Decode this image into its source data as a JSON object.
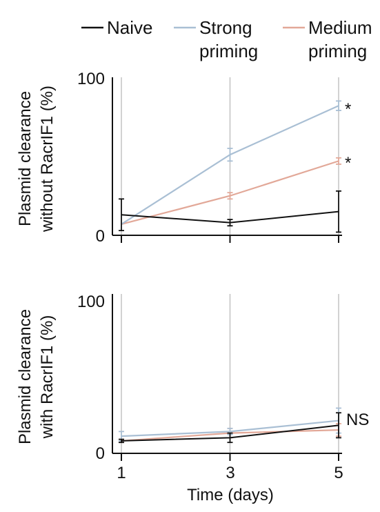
{
  "colors": {
    "naive": "#111111",
    "strong": "#a9bfd4",
    "medium": "#e2a898",
    "grid": "#b5b5b5",
    "axis": "#111111"
  },
  "legend": [
    {
      "label": "Naive",
      "label2": "",
      "color": "#111111"
    },
    {
      "label": "Strong",
      "label2": "priming",
      "color": "#a9bfd4"
    },
    {
      "label": "Medium",
      "label2": "priming",
      "color": "#e2a898"
    }
  ],
  "chart_data": [
    {
      "type": "line",
      "ylabel_line1": "Plasmid clearance",
      "ylabel_line2": "without RacrIF1 (%)",
      "ylim": [
        0,
        100
      ],
      "yticks": [
        "0",
        "100"
      ],
      "x": [
        1,
        3,
        5
      ],
      "grid": "vertical lines at x ticks",
      "series": [
        {
          "name": "Naive",
          "values": [
            13,
            8,
            15
          ],
          "errors": [
            10,
            2,
            13
          ]
        },
        {
          "name": "Strong priming",
          "values": [
            7,
            51,
            82
          ],
          "errors": [
            0,
            4,
            3
          ]
        },
        {
          "name": "Medium priming",
          "values": [
            7,
            25,
            47
          ],
          "errors": [
            0,
            2,
            2
          ]
        }
      ],
      "annotations": [
        {
          "text": "*",
          "series": "Strong priming",
          "x": 5
        },
        {
          "text": "*",
          "series": "Medium priming",
          "x": 5
        }
      ]
    },
    {
      "type": "line",
      "ylabel_line1": "Plasmid clearance",
      "ylabel_line2": "with RacrIF1 (%)",
      "ylim": [
        0,
        100
      ],
      "yticks": [
        "0",
        "100"
      ],
      "x": [
        1,
        3,
        5
      ],
      "xticks": [
        "1",
        "3",
        "5"
      ],
      "xlabel": "Time (days)",
      "grid": "vertical lines at x ticks",
      "series": [
        {
          "name": "Naive",
          "values": [
            8,
            10,
            18
          ],
          "errors": [
            1,
            3,
            8
          ]
        },
        {
          "name": "Strong priming",
          "values": [
            11,
            14,
            21
          ],
          "errors": [
            3,
            2,
            8
          ]
        },
        {
          "name": "Medium priming",
          "values": [
            8,
            13,
            15
          ],
          "errors": [
            1,
            3,
            4
          ]
        }
      ],
      "annotations": [
        {
          "text": "NS",
          "x": 5
        }
      ]
    }
  ]
}
